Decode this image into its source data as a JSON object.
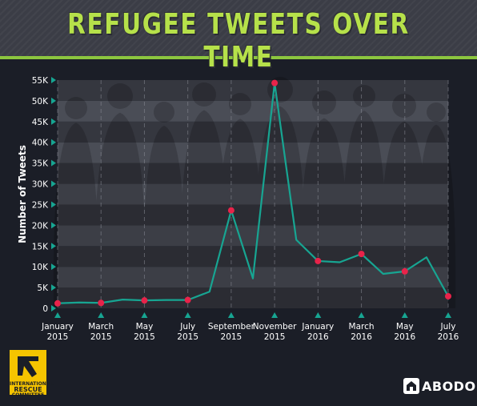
{
  "title": "REFUGEE TWEETS OVER TIME",
  "colors": {
    "background": "#1b1e27",
    "header": "#3b3d46",
    "title": "#b6e14a",
    "header_bar": "#8cc63f",
    "band_light": "#4a4d56",
    "band_dark": "#35373f",
    "line": "#17a592",
    "marker": "#e8234a",
    "tick_marker": "#17a592"
  },
  "chart_data": {
    "type": "line",
    "ylabel": "Number of Tweets",
    "xlabel": "",
    "ylim": [
      0,
      55000
    ],
    "yticks": [
      {
        "value": 0,
        "label": "0"
      },
      {
        "value": 5000,
        "label": "5K"
      },
      {
        "value": 10000,
        "label": "10K"
      },
      {
        "value": 15000,
        "label": "15K"
      },
      {
        "value": 20000,
        "label": "20K"
      },
      {
        "value": 25000,
        "label": "25K"
      },
      {
        "value": 30000,
        "label": "30K"
      },
      {
        "value": 35000,
        "label": "35K"
      },
      {
        "value": 40000,
        "label": "40K"
      },
      {
        "value": 45000,
        "label": "45K"
      },
      {
        "value": 50000,
        "label": "50K"
      },
      {
        "value": 55000,
        "label": "55K"
      }
    ],
    "x": [
      "2015-01",
      "2015-02",
      "2015-03",
      "2015-04",
      "2015-05",
      "2015-06",
      "2015-07",
      "2015-08",
      "2015-09",
      "2015-10",
      "2015-11",
      "2015-12",
      "2016-01",
      "2016-02",
      "2016-03",
      "2016-04",
      "2016-05",
      "2016-06",
      "2016-07"
    ],
    "values": [
      1200,
      1400,
      1300,
      2100,
      1900,
      2000,
      2000,
      4000,
      23600,
      7200,
      54300,
      16500,
      11400,
      11100,
      13100,
      8300,
      8900,
      12300,
      2900
    ],
    "highlighted": [
      "2015-01",
      "2015-03",
      "2015-05",
      "2015-07",
      "2015-09",
      "2015-11",
      "2016-01",
      "2016-03",
      "2016-05",
      "2016-07"
    ],
    "xticks": [
      {
        "x": "2015-01",
        "label": [
          "January",
          "2015"
        ]
      },
      {
        "x": "2015-03",
        "label": [
          "March",
          "2015"
        ]
      },
      {
        "x": "2015-05",
        "label": [
          "May",
          "2015"
        ]
      },
      {
        "x": "2015-07",
        "label": [
          "July",
          "2015"
        ]
      },
      {
        "x": "2015-09",
        "label": [
          "September",
          "2015"
        ]
      },
      {
        "x": "2015-11",
        "label": [
          "November",
          "2015"
        ]
      },
      {
        "x": "2016-01",
        "label": [
          "January",
          "2016"
        ]
      },
      {
        "x": "2016-03",
        "label": [
          "March",
          "2016"
        ]
      },
      {
        "x": "2016-05",
        "label": [
          "May",
          "2016"
        ]
      },
      {
        "x": "2016-07",
        "label": [
          "July",
          "2016"
        ]
      }
    ],
    "grid": "vertical dashed lines at labeled months, alternating horizontal bands"
  },
  "logos": {
    "rescue_text": [
      "INTERNATIONAL",
      "RESCUE",
      "COMMITTEE"
    ],
    "abodo_text": "ABODO"
  }
}
